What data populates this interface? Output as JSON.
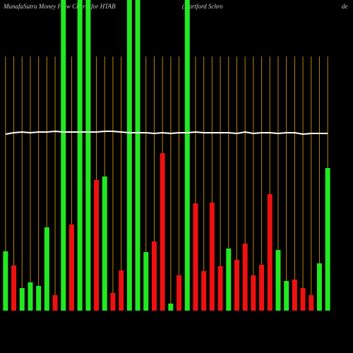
{
  "chart_data": {
    "type": "bar",
    "title": "MunafaSutra  Money Flow  Charts for HTAB",
    "subtitle": "(Hartford Schro",
    "extra": "de",
    "categories": [
      null,
      null,
      null,
      null,
      null,
      null,
      null,
      null,
      null,
      null,
      null,
      null,
      null,
      null,
      null,
      null,
      null,
      null,
      null,
      null,
      null,
      null,
      null,
      null,
      null,
      null,
      null,
      null,
      null,
      null,
      null,
      null,
      null,
      null,
      null,
      null,
      null,
      null,
      null,
      null
    ],
    "ylim": [
      0,
      440
    ],
    "series": [
      {
        "type": "bar",
        "values": [
          84,
          64,
          32,
          40,
          35,
          118,
          22,
          440,
          122,
          440,
          440,
          185,
          190,
          25,
          57,
          440,
          440,
          83,
          98,
          223,
          10,
          50,
          440,
          152,
          56,
          153,
          63,
          88,
          72,
          95,
          50,
          65,
          165,
          86,
          42,
          44,
          32,
          22,
          67,
          202
        ],
        "colors": [
          "#22e822",
          "#ee1111",
          "#22e822",
          "#22e822",
          "#22e822",
          "#22e822",
          "#ee1111",
          "#22e822",
          "#ee1111",
          "#22e822",
          "#22e822",
          "#ee1111",
          "#22e822",
          "#ee1111",
          "#ee1111",
          "#22e822",
          "#22e822",
          "#22e822",
          "#ee1111",
          "#ee1111",
          "#22e822",
          "#ee1111",
          "#22e822",
          "#ee1111",
          "#ee1111",
          "#ee1111",
          "#ee1111",
          "#22e822",
          "#ee1111",
          "#ee1111",
          "#ee1111",
          "#ee1111",
          "#ee1111",
          "#22e822",
          "#22e822",
          "#ee1111",
          "#ee1111",
          "#ee1111",
          "#22e822",
          "#22e822"
        ]
      },
      {
        "type": "line",
        "color": "#ffffff",
        "values": [
          250,
          252,
          253,
          252,
          253,
          253,
          254,
          253,
          253,
          253,
          253,
          253,
          254,
          254,
          253,
          252,
          252,
          252,
          251,
          252,
          251,
          252,
          252,
          253,
          252,
          252,
          252,
          252,
          251,
          253,
          251,
          252,
          252,
          251,
          252,
          252,
          250,
          251,
          251,
          251
        ]
      }
    ],
    "grid_color": "#b8860b"
  }
}
